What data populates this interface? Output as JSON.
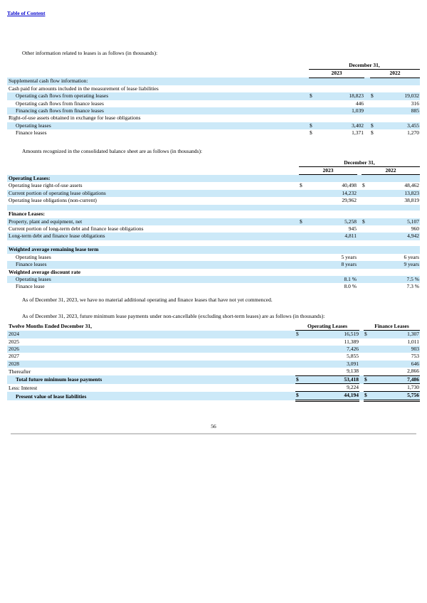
{
  "colors": {
    "row_highlight": "#CCE9F8",
    "link_blue": "#0000CC",
    "divider_gray": "#C9C9C9"
  },
  "page": {
    "toc_link": "Table of Content",
    "intro1": "Other information related to leases is as follows (in thousands):",
    "intro2": "Amounts recognized in the consolidated balance sheet are as follows (in thousands):",
    "note1": "As of December 31, 2023, we have no material additional operating and finance leases that have not yet commenced.",
    "note2": "As of December 31, 2023, future minimum lease payments under non-cancellable (excluding short-term leases) are as follows (in thousands):",
    "page_number": "56"
  },
  "table1": {
    "period_header": "December 31,",
    "col_headers": [
      "2023",
      "2022"
    ],
    "rows": [
      {
        "label": "Supplemental cash flow information:",
        "indent": 0,
        "bold": false,
        "shaded": true,
        "d1": "",
        "v1": "",
        "d2": "",
        "v2": ""
      },
      {
        "label": "Cash paid for amounts included in the measurement of lease liabilities",
        "indent": 0,
        "bold": false,
        "shaded": false,
        "d1": "",
        "v1": "",
        "d2": "",
        "v2": ""
      },
      {
        "label": "Operating cash flows from operating leases",
        "indent": 1,
        "bold": false,
        "shaded": true,
        "d1": "$",
        "v1": "18,823",
        "d2": "$",
        "v2": "19,032"
      },
      {
        "label": "Operating cash flows from finance leases",
        "indent": 1,
        "bold": false,
        "shaded": false,
        "d1": "",
        "v1": "446",
        "d2": "",
        "v2": "316"
      },
      {
        "label": "Financing cash flows from finance leases",
        "indent": 1,
        "bold": false,
        "shaded": true,
        "d1": "",
        "v1": "1,039",
        "d2": "",
        "v2": "885"
      },
      {
        "label": "Right-of-use assets obtained in exchange for lease obligations",
        "indent": 0,
        "bold": false,
        "shaded": false,
        "d1": "",
        "v1": "",
        "d2": "",
        "v2": ""
      },
      {
        "label": "Operating leases",
        "indent": 1,
        "bold": false,
        "shaded": true,
        "d1": "$",
        "v1": "3,402",
        "d2": "$",
        "v2": "3,455"
      },
      {
        "label": "Finance leases",
        "indent": 1,
        "bold": false,
        "shaded": false,
        "d1": "$",
        "v1": "1,371",
        "d2": "$",
        "v2": "1,270"
      }
    ]
  },
  "table2": {
    "period_header": "December 31,",
    "col_headers": [
      "2023",
      "2022"
    ],
    "rows": [
      {
        "label": "Operating Leases:",
        "indent": 0,
        "bold": true,
        "shaded": true,
        "d1": "",
        "v1": "",
        "d2": "",
        "v2": ""
      },
      {
        "label": "Operating lease right-of-use assets",
        "indent": 0,
        "bold": false,
        "shaded": false,
        "d1": "$",
        "v1": "40,498",
        "d2": "$",
        "v2": "48,462"
      },
      {
        "label": "Current portion of operating lease obligations",
        "indent": 0,
        "bold": false,
        "shaded": true,
        "d1": "",
        "v1": "14,232",
        "d2": "",
        "v2": "13,823"
      },
      {
        "label": "Operating lease obligations (non-current)",
        "indent": 0,
        "bold": false,
        "shaded": false,
        "d1": "",
        "v1": "29,962",
        "d2": "",
        "v2": "38,819"
      },
      {
        "label": "",
        "indent": 0,
        "bold": false,
        "shaded": true,
        "d1": "",
        "v1": "",
        "d2": "",
        "v2": ""
      },
      {
        "label": "Finance Leases:",
        "indent": 0,
        "bold": true,
        "shaded": false,
        "d1": "",
        "v1": "",
        "d2": "",
        "v2": ""
      },
      {
        "label": "Property, plant and equipment, net",
        "indent": 0,
        "bold": false,
        "shaded": true,
        "d1": "$",
        "v1": "5,258",
        "d2": "$",
        "v2": "5,107"
      },
      {
        "label": "Current portion of long-term debt and finance lease obligations",
        "indent": 0,
        "bold": false,
        "shaded": false,
        "d1": "",
        "v1": "945",
        "d2": "",
        "v2": "960"
      },
      {
        "label": "Long-term debt and finance lease obligations",
        "indent": 0,
        "bold": false,
        "shaded": true,
        "d1": "",
        "v1": "4,811",
        "d2": "",
        "v2": "4,942"
      },
      {
        "label": "",
        "indent": 0,
        "bold": false,
        "shaded": false,
        "d1": "",
        "v1": "",
        "d2": "",
        "v2": ""
      },
      {
        "label": "Weighted average remaining lease term",
        "indent": 0,
        "bold": true,
        "shaded": true,
        "d1": "",
        "v1": "",
        "d2": "",
        "v2": ""
      },
      {
        "label": "Operating leases",
        "indent": 1,
        "bold": false,
        "shaded": false,
        "d1": "",
        "v1": "5 years",
        "d2": "",
        "v2": "6 years"
      },
      {
        "label": "Finance leases",
        "indent": 1,
        "bold": false,
        "shaded": true,
        "d1": "",
        "v1": "8 years",
        "d2": "",
        "v2": "9 years"
      },
      {
        "label": "Weighted average discount rate",
        "indent": 0,
        "bold": true,
        "shaded": false,
        "d1": "",
        "v1": "",
        "d2": "",
        "v2": ""
      },
      {
        "label": "Operating leases",
        "indent": 1,
        "bold": false,
        "shaded": true,
        "d1": "",
        "v1": "8.1 %",
        "d2": "",
        "v2": "7.5 %"
      },
      {
        "label": "Finance lease",
        "indent": 1,
        "bold": false,
        "shaded": false,
        "d1": "",
        "v1": "8.0 %",
        "d2": "",
        "v2": "7.3 %"
      }
    ]
  },
  "table3": {
    "label_header": "Twelve Months Ended December 31,",
    "col1_header": "Operating Leases",
    "col2_header": "Finance Leases",
    "rows": [
      {
        "label": "2024",
        "indent": 0,
        "bold": false,
        "shaded": true,
        "d1": "$",
        "v1": "16,519",
        "d2": "$",
        "v2": "1,307"
      },
      {
        "label": "2025",
        "indent": 0,
        "bold": false,
        "shaded": false,
        "d1": "",
        "v1": "11,389",
        "d2": "",
        "v2": "1,011"
      },
      {
        "label": "2026",
        "indent": 0,
        "bold": false,
        "shaded": true,
        "d1": "",
        "v1": "7,426",
        "d2": "",
        "v2": "903"
      },
      {
        "label": "2027",
        "indent": 0,
        "bold": false,
        "shaded": false,
        "d1": "",
        "v1": "5,855",
        "d2": "",
        "v2": "753"
      },
      {
        "label": "2028",
        "indent": 0,
        "bold": false,
        "shaded": true,
        "d1": "",
        "v1": "3,091",
        "d2": "",
        "v2": "646"
      },
      {
        "label": "Thereafter",
        "indent": 0,
        "bold": false,
        "shaded": false,
        "d1": "",
        "v1": "9,138",
        "d2": "",
        "v2": "2,866",
        "line": "bb"
      },
      {
        "label": "Total future minimum lease payments",
        "indent": 1,
        "bold": true,
        "shaded": true,
        "d1": "$",
        "v1": "53,418",
        "d2": "$",
        "v2": "7,486",
        "line": "bb"
      },
      {
        "label": "Less: Interest",
        "indent": 0,
        "bold": false,
        "shaded": false,
        "d1": "",
        "v1": "9,224",
        "d2": "",
        "v2": "1,730",
        "line": "bb"
      },
      {
        "label": "Present value of lease liabilities",
        "indent": 1,
        "bold": true,
        "shaded": true,
        "d1": "$",
        "v1": "44,194",
        "d2": "$",
        "v2": "5,756",
        "line": "dbl"
      }
    ]
  }
}
